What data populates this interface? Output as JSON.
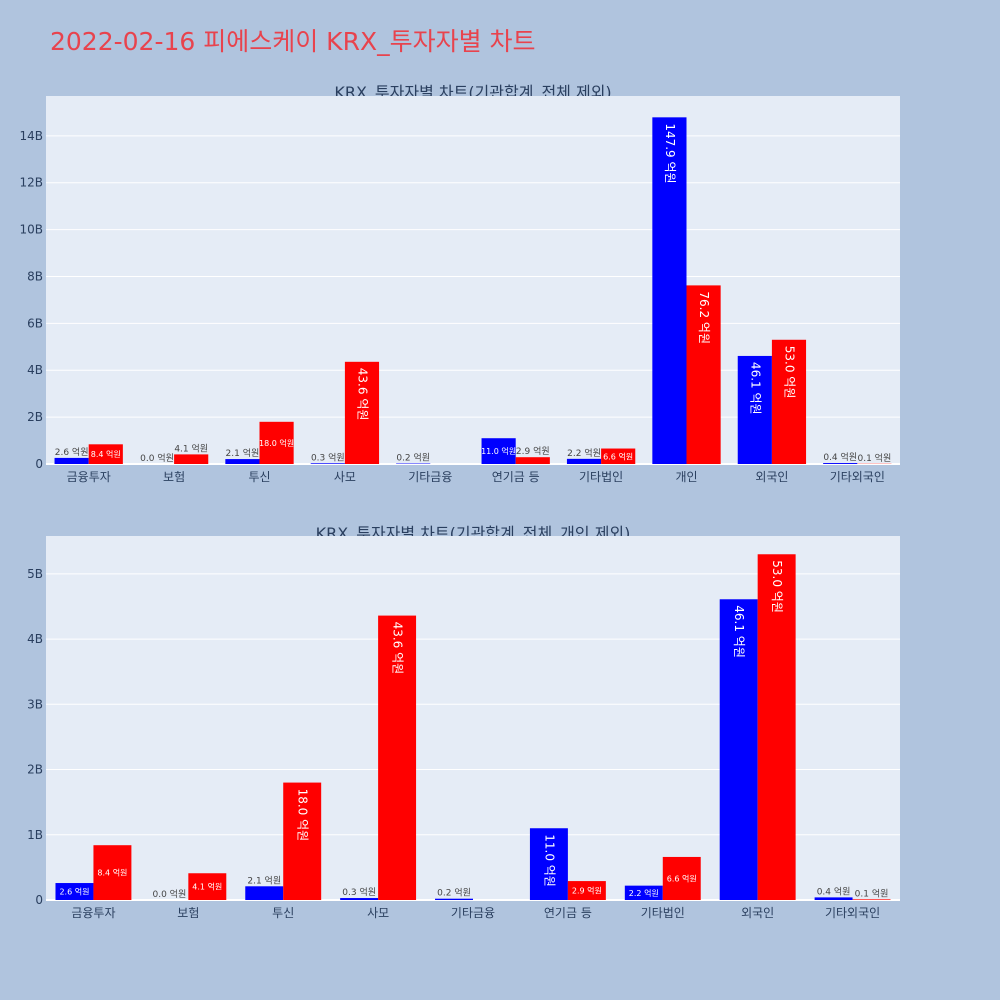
{
  "page_title": "2022-02-16 피에스케이 KRX_투자자별 차트",
  "colors": {
    "background": "#b0c4de",
    "plot_bg": "#e5ecf6",
    "buy": "#0000ff",
    "sell": "#ff0000",
    "title": "#e8434d"
  },
  "chart_data": [
    {
      "type": "bar",
      "title": "KRX_투자자별 차트(기관합계_전체 제외)",
      "categories": [
        "금융투자",
        "보험",
        "투신",
        "사모",
        "기타금융",
        "연기금 등",
        "기타법인",
        "개인",
        "외국인",
        "기타외국인"
      ],
      "series": [
        {
          "values": [
            260000000,
            0,
            210000000,
            30000000,
            20000000,
            1100000000,
            220000000,
            14790000000,
            4610000000,
            40000000
          ],
          "labels": [
            "2.6 억원",
            "0.0 억원",
            "2.1 억원",
            "0.3 억원",
            "0.2 억원",
            "11.0 억원",
            "2.2 억원",
            "147.9 억원",
            "46.1 억원",
            "0.4 억원"
          ]
        },
        {
          "values": [
            840000000,
            410000000,
            1800000000,
            4360000000,
            0,
            290000000,
            660000000,
            7620000000,
            5300000000,
            10000000
          ],
          "labels": [
            "8.4 억원",
            "4.1 억원",
            "18.0 억원",
            "43.6 억원",
            "",
            "2.9 억원",
            "6.6 억원",
            "76.2 억원",
            "53.0 억원",
            "0.1 억원"
          ]
        }
      ],
      "yticks": [
        0,
        2000000000,
        4000000000,
        6000000000,
        8000000000,
        10000000000,
        12000000000,
        14000000000
      ],
      "ytick_labels": [
        "0",
        "2B",
        "4B",
        "6B",
        "8B",
        "10B",
        "12B",
        "14B"
      ],
      "ylim": [
        0,
        15700000000
      ],
      "grid": true
    },
    {
      "type": "bar",
      "title": "KRX_투자자별 차트(기관합계_전체_개인 제외)",
      "categories": [
        "금융투자",
        "보험",
        "투신",
        "사모",
        "기타금융",
        "연기금 등",
        "기타법인",
        "외국인",
        "기타외국인"
      ],
      "series": [
        {
          "values": [
            260000000,
            0,
            210000000,
            30000000,
            20000000,
            1100000000,
            220000000,
            4610000000,
            40000000
          ],
          "labels": [
            "2.6 억원",
            "0.0 억원",
            "2.1 억원",
            "0.3 억원",
            "0.2 억원",
            "11.0 억원",
            "2.2 억원",
            "46.1 억원",
            "0.4 억원"
          ]
        },
        {
          "values": [
            840000000,
            410000000,
            1800000000,
            4360000000,
            0,
            290000000,
            660000000,
            5300000000,
            10000000
          ],
          "labels": [
            "8.4 억원",
            "4.1 억원",
            "18.0 억원",
            "43.6 억원",
            "",
            "2.9 억원",
            "6.6 억원",
            "53.0 억원",
            "0.1 억원"
          ]
        }
      ],
      "yticks": [
        0,
        1000000000,
        2000000000,
        3000000000,
        4000000000,
        5000000000
      ],
      "ytick_labels": [
        "0",
        "1B",
        "2B",
        "3B",
        "4B",
        "5B"
      ],
      "ylim": [
        0,
        5580000000
      ],
      "grid": true
    }
  ]
}
